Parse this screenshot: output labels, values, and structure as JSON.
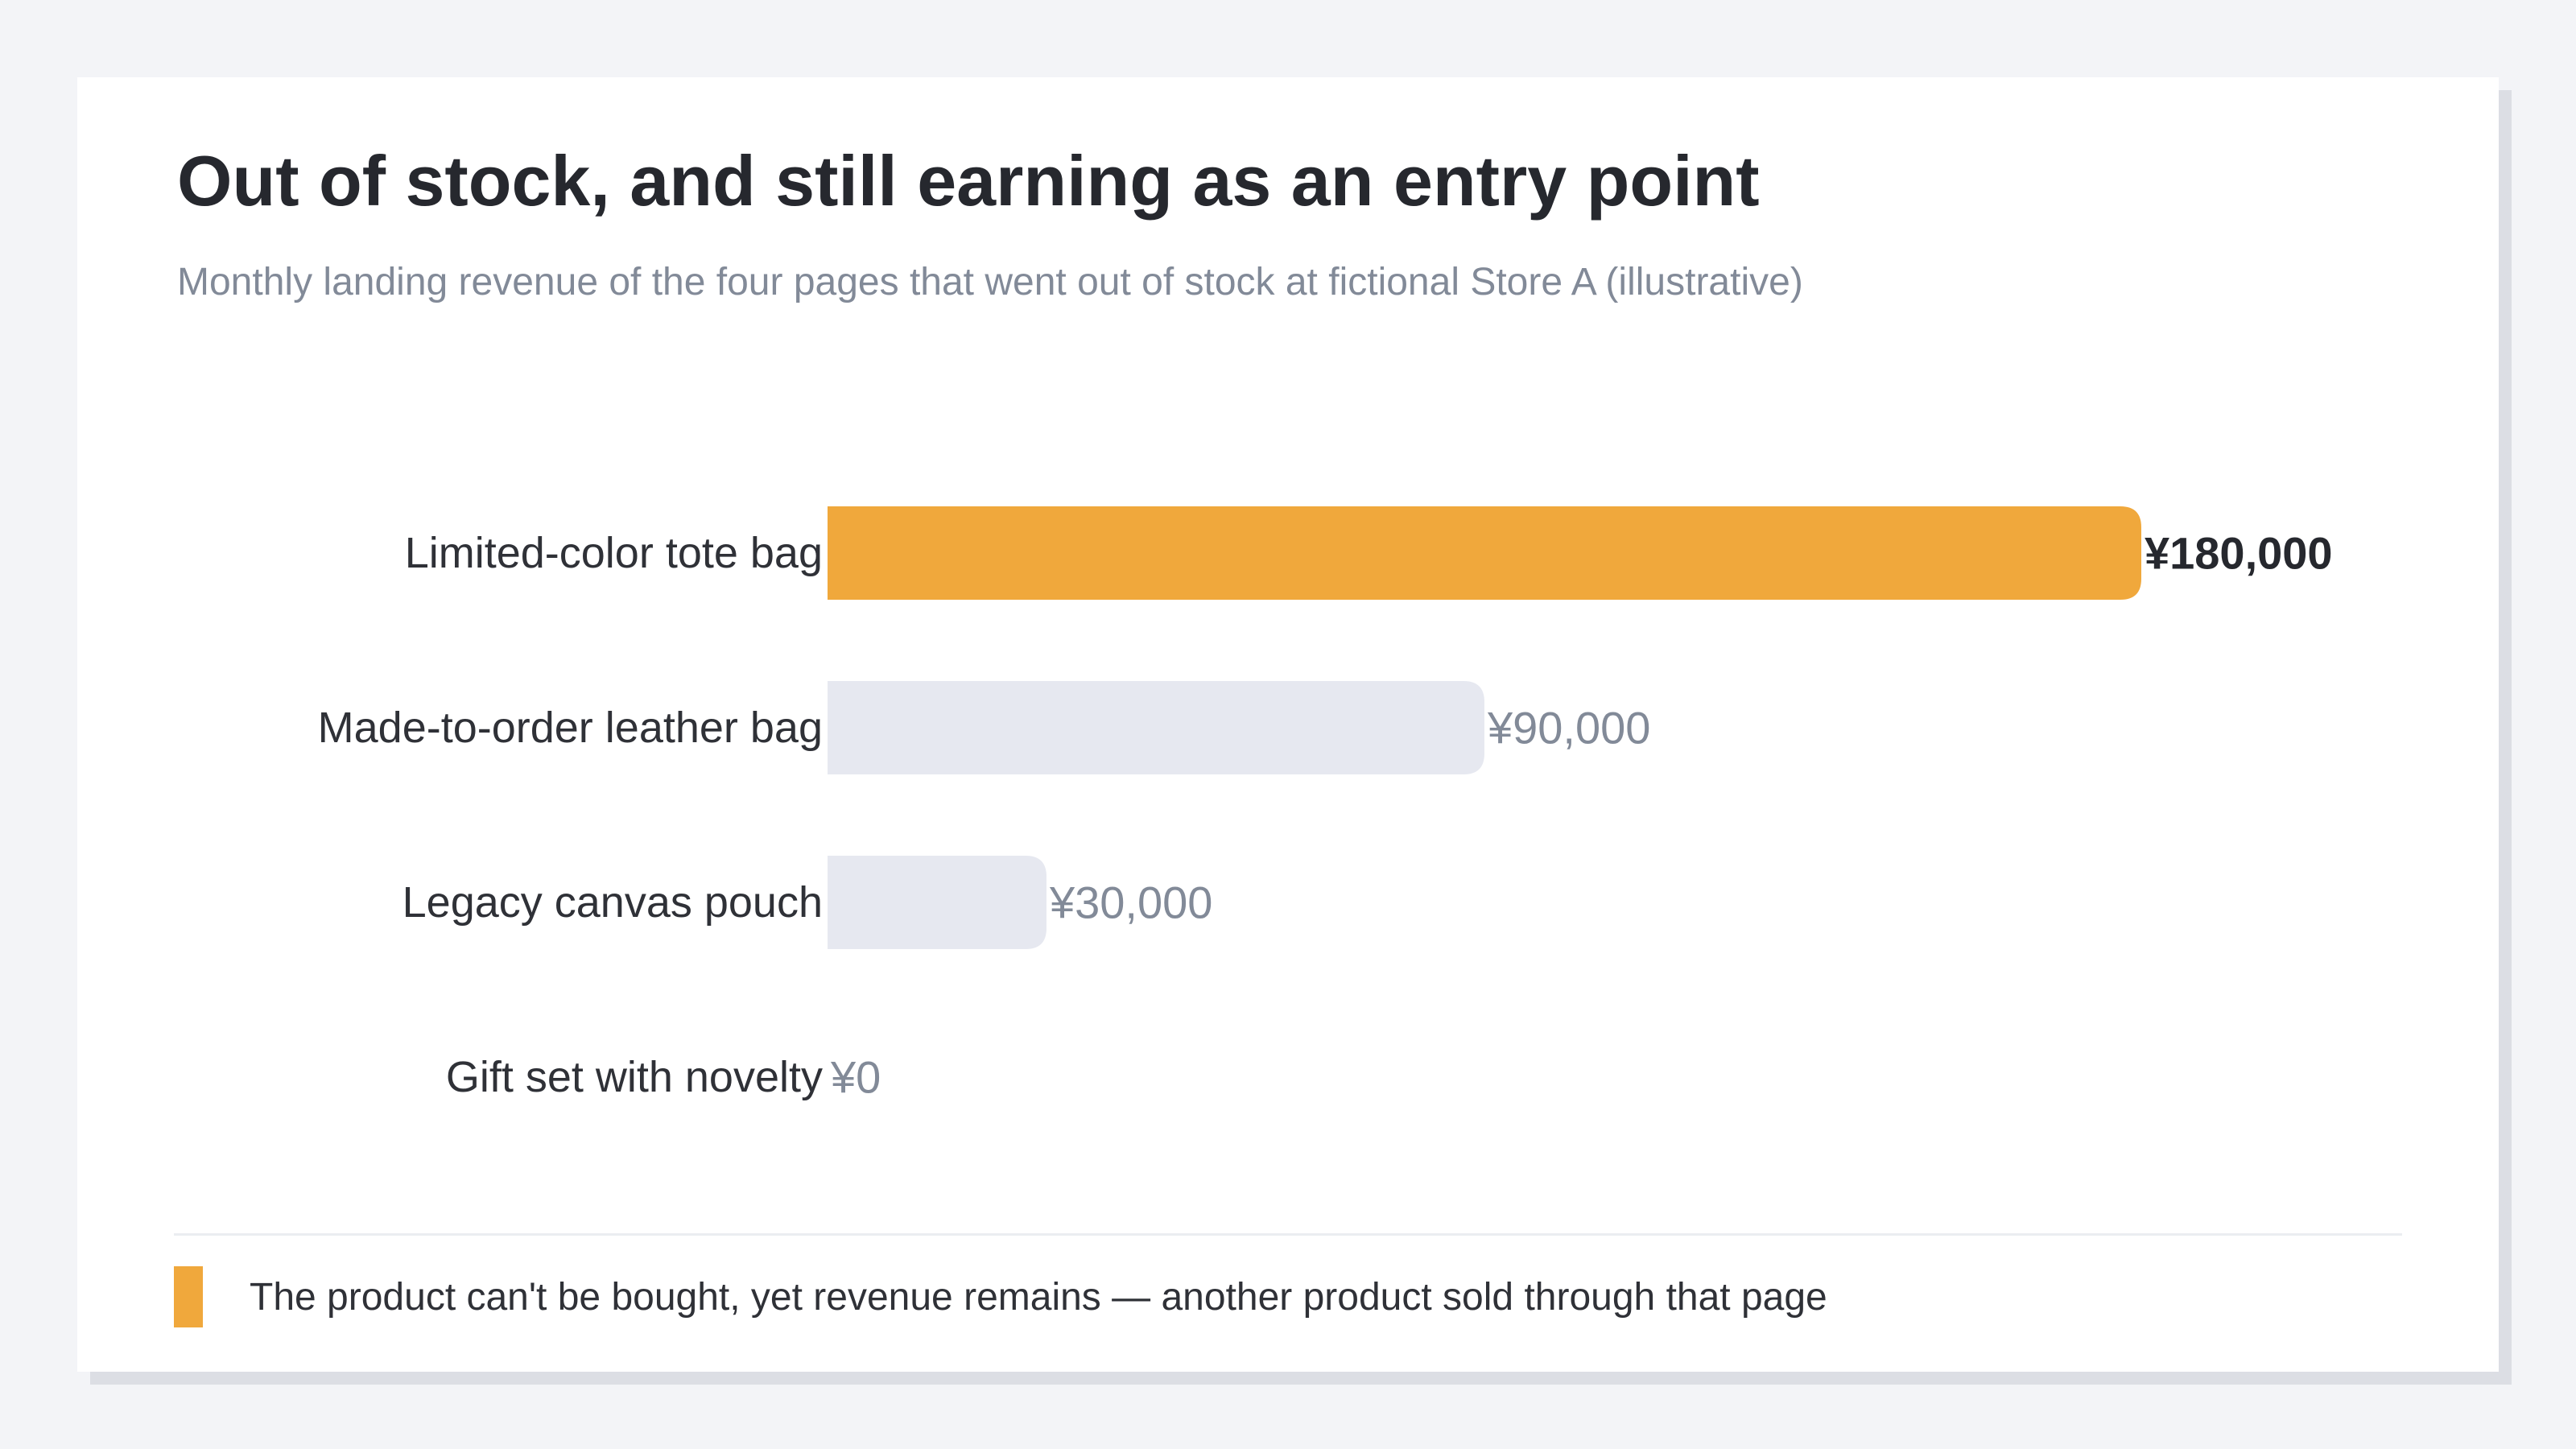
{
  "chart_data": {
    "type": "bar",
    "orientation": "horizontal",
    "title": "Out of stock, and still earning as an entry point",
    "subtitle": "Monthly landing revenue of the four pages that went out of stock at fictional Store A (illustrative)",
    "categories": [
      "Limited-color tote bag",
      "Made-to-order leather bag",
      "Legacy canvas pouch",
      "Gift set with novelty"
    ],
    "values": [
      180000,
      90000,
      30000,
      0
    ],
    "value_labels": [
      "¥180,000",
      "¥90,000",
      "¥30,000",
      "¥0"
    ],
    "highlight_index": 0,
    "xlim": [
      0,
      180000
    ],
    "grid": false,
    "colors": {
      "highlight": "#f0a83c",
      "default": "#e6e8f0",
      "label_highlight": "#26282e",
      "label_default": "#828a98",
      "category_text": "#2f3137"
    },
    "legend": {
      "placement": "bottom-left",
      "text": "The product can't be bought, yet revenue remains — another product sold through that page"
    }
  }
}
